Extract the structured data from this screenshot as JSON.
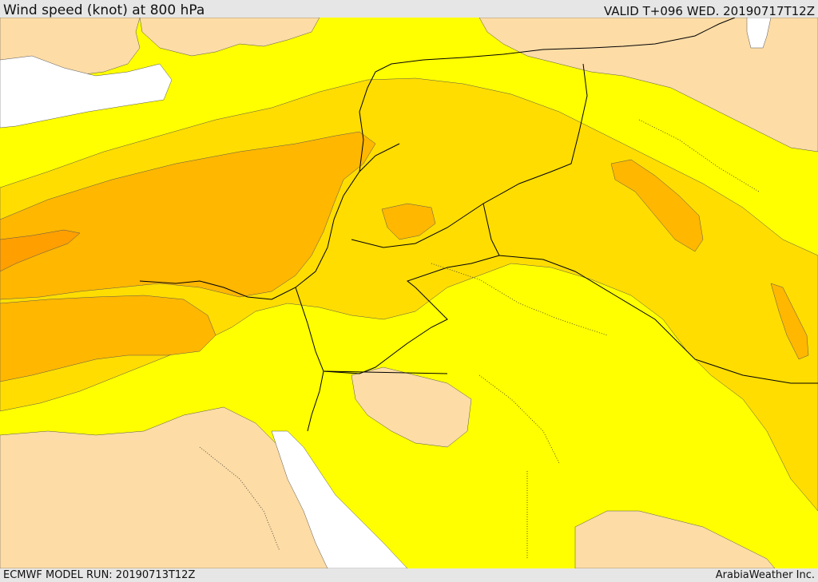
{
  "header": {
    "title": "Wind speed (knot) at 800 hPa",
    "valid_time": "VALID T+096 WED. 20190717T12Z"
  },
  "footer": {
    "model_run": "ECMWF MODEL RUN: 20190713T12Z",
    "credit": "ArabiaWeather Inc."
  },
  "map": {
    "colors": {
      "light_wind": "#fddca6",
      "sea": "#ffffff",
      "band_1": "#ffff00",
      "band_2": "#ffdd00",
      "band_3": "#ffb700",
      "band_4": "#ff9f00",
      "border": "#000000"
    }
  }
}
